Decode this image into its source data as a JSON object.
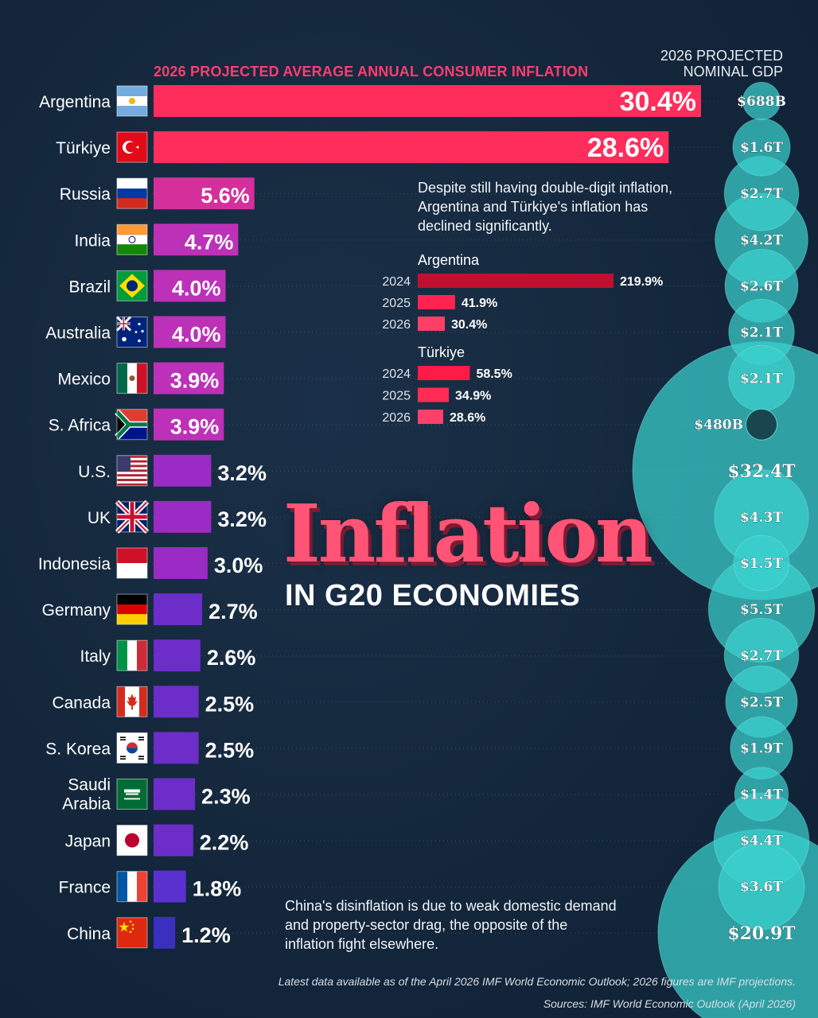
{
  "headers": {
    "inflation_label": "2026 PROJECTED AVERAGE ANNUAL CONSUMER INFLATION",
    "gdp_label_line1": "2026 PROJECTED",
    "gdp_label_line2": "NOMINAL GDP"
  },
  "title": {
    "main": "Inflation",
    "sub": "IN G20 ECONOMIES"
  },
  "annotations": {
    "argentina_turkiye": "Despite still having double-digit inflation, Argentina and Türkiye's inflation has declined significantly.",
    "china": "China's disinflation is due to weak domestic demand and property-sector drag, the opposite of the inflation fight elsewhere."
  },
  "footer": {
    "note": "Latest data available as of the April 2026 IMF World Economic Outlook; 2026 figures are IMF projections.",
    "sources": "Sources: IMF World Economic Outlook (April 2026)"
  },
  "colors": {
    "background": "#14273d",
    "high_bar": "#ff2d5b",
    "bubble": "#3fd0cf",
    "bubble_dark": "#123a44"
  },
  "chart_data": [
    {
      "type": "bar",
      "orientation": "horizontal",
      "title": "2026 PROJECTED AVERAGE ANNUAL CONSUMER INFLATION",
      "unit": "%",
      "categories": [
        "Argentina",
        "Türkiye",
        "Russia",
        "India",
        "Brazil",
        "Australia",
        "Mexico",
        "S. Africa",
        "U.S.",
        "UK",
        "Indonesia",
        "Germany",
        "Italy",
        "Canada",
        "S. Korea",
        "Saudi Arabia",
        "Japan",
        "France",
        "China"
      ],
      "values": [
        30.4,
        28.6,
        5.6,
        4.7,
        4.0,
        4.0,
        3.9,
        3.9,
        3.2,
        3.2,
        3.0,
        2.7,
        2.6,
        2.5,
        2.5,
        2.3,
        2.2,
        1.8,
        1.2
      ],
      "value_labels": [
        "30.4%",
        "28.6%",
        "5.6%",
        "4.7%",
        "4.0%",
        "4.0%",
        "3.9%",
        "3.9%",
        "3.2%",
        "3.2%",
        "3.0%",
        "2.7%",
        "2.6%",
        "2.5%",
        "2.5%",
        "2.3%",
        "2.2%",
        "1.8%",
        "1.2%"
      ],
      "flags": [
        "argentina-flag",
        "turkiye-flag",
        "russia-flag",
        "india-flag",
        "brazil-flag",
        "australia-flag",
        "mexico-flag",
        "south-africa-flag",
        "us-flag",
        "uk-flag",
        "indonesia-flag",
        "germany-flag",
        "italy-flag",
        "canada-flag",
        "south-korea-flag",
        "saudi-arabia-flag",
        "japan-flag",
        "france-flag",
        "china-flag"
      ]
    },
    {
      "type": "bubble",
      "title": "2026 PROJECTED NOMINAL GDP",
      "categories": [
        "Argentina",
        "Türkiye",
        "Russia",
        "India",
        "Brazil",
        "Australia",
        "Mexico",
        "S. Africa",
        "U.S.",
        "UK",
        "Indonesia",
        "Germany",
        "Italy",
        "Canada",
        "S. Korea",
        "Saudi Arabia",
        "Japan",
        "France",
        "China"
      ],
      "values_trillion_usd": [
        0.688,
        1.6,
        2.7,
        4.2,
        2.6,
        2.1,
        2.1,
        0.48,
        32.4,
        4.3,
        1.5,
        5.5,
        2.7,
        2.5,
        1.9,
        1.4,
        4.4,
        3.6,
        20.9
      ],
      "labels": [
        "$688B",
        "$1.6T",
        "$2.7T",
        "$4.2T",
        "$2.6T",
        "$2.1T",
        "$2.1T",
        "$480B",
        "$32.4T",
        "$4.3T",
        "$1.5T",
        "$5.5T",
        "$2.7T",
        "$2.5T",
        "$1.9T",
        "$1.4T",
        "$4.4T",
        "$3.6T",
        "$20.9T"
      ]
    },
    {
      "type": "bar",
      "orientation": "horizontal",
      "title": "Argentina",
      "unit": "%",
      "categories": [
        "2024",
        "2025",
        "2026"
      ],
      "values": [
        219.9,
        41.9,
        30.4
      ],
      "value_labels": [
        "219.9%",
        "41.9%",
        "30.4%"
      ]
    },
    {
      "type": "bar",
      "orientation": "horizontal",
      "title": "Türkiye",
      "unit": "%",
      "categories": [
        "2024",
        "2025",
        "2026"
      ],
      "values": [
        58.5,
        34.9,
        28.6
      ],
      "value_labels": [
        "58.5%",
        "34.9%",
        "28.6%"
      ]
    }
  ]
}
